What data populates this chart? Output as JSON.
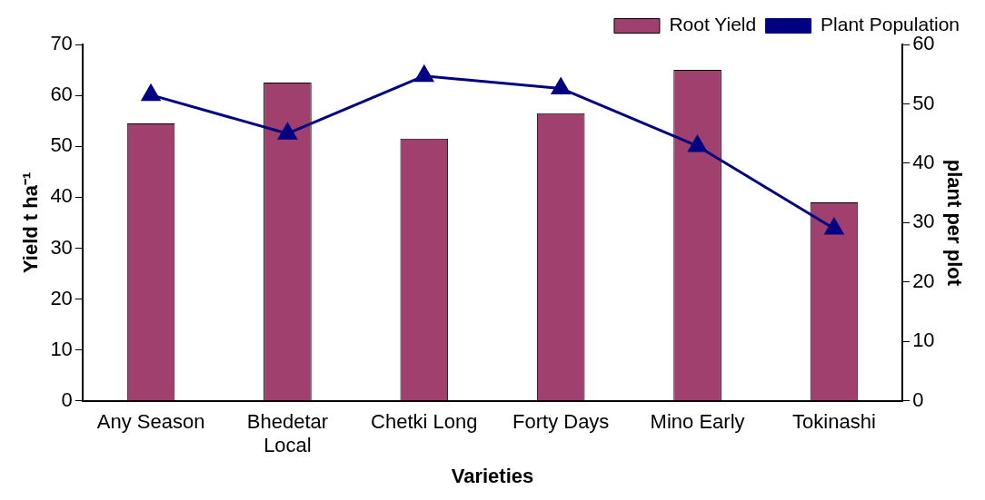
{
  "chart_data": {
    "type": "bar",
    "xlabel": "Varieties",
    "ylabel": "Yield t ha⁻¹",
    "y2label": "plant per plot",
    "categories": [
      "Any Season",
      "Bhedetar Local",
      "Chetki Long",
      "Forty Days",
      "Mino Early",
      "Tokinashi"
    ],
    "series": [
      {
        "name": "Root Yield",
        "color": "#a0406e",
        "values": [
          54.5,
          62.5,
          51.5,
          56.5,
          65,
          39
        ]
      },
      {
        "name": "Plant Population",
        "type": "line",
        "axis": "y2",
        "color": "#000080",
        "marker": "triangle",
        "values": [
          51.5,
          45,
          54.7,
          52.6,
          42.9,
          29
        ]
      }
    ],
    "ylim": [
      0,
      70
    ],
    "yticks": [
      0,
      10,
      20,
      30,
      40,
      50,
      60,
      70
    ],
    "y2lim": [
      0,
      60
    ],
    "y2ticks": [
      0,
      10,
      20,
      30,
      40,
      50,
      60
    ],
    "grid": false,
    "legend": "top right"
  }
}
